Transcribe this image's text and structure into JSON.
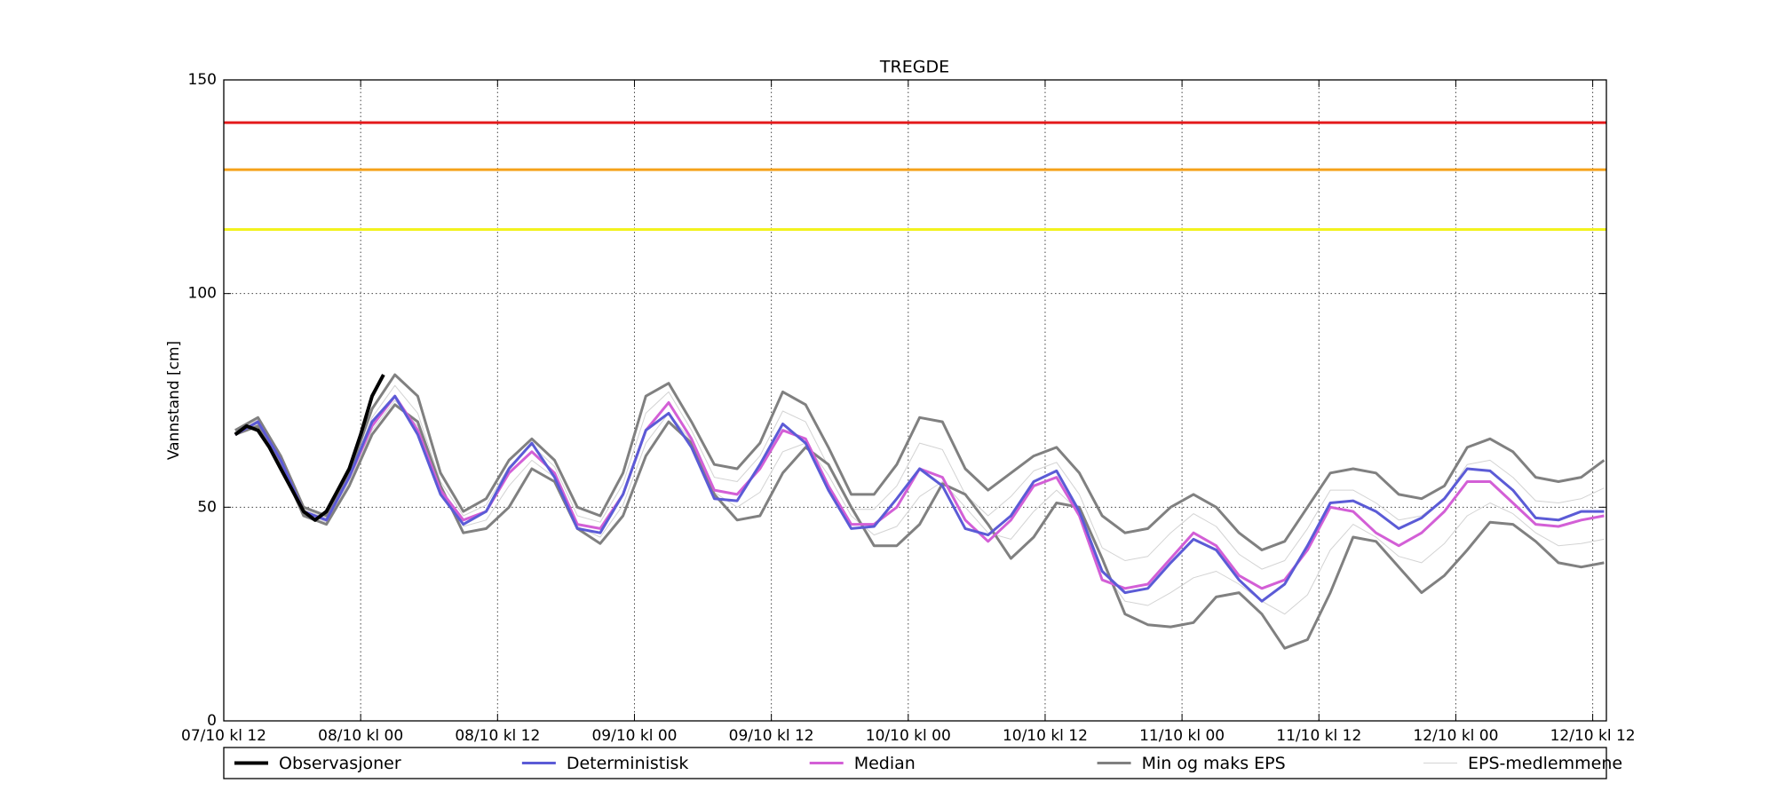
{
  "chart_data": {
    "type": "line",
    "title": "TREGDE",
    "ylabel": "Vannstand [cm]",
    "xlim": [
      0,
      121.2
    ],
    "ylim": [
      0,
      150
    ],
    "xticks": [
      {
        "value": 0,
        "label": "07/10 kl 12"
      },
      {
        "value": 12,
        "label": "08/10 kl 00"
      },
      {
        "value": 24,
        "label": "08/10 kl 12"
      },
      {
        "value": 36,
        "label": "09/10 kl 00"
      },
      {
        "value": 48,
        "label": "09/10 kl 12"
      },
      {
        "value": 60,
        "label": "10/10 kl 00"
      },
      {
        "value": 72,
        "label": "10/10 kl 12"
      },
      {
        "value": 84,
        "label": "11/10 kl 00"
      },
      {
        "value": 96,
        "label": "11/10 kl 12"
      },
      {
        "value": 108,
        "label": "12/10 kl 00"
      },
      {
        "value": 120,
        "label": "12/10 kl 12"
      }
    ],
    "yticks": [
      0,
      50,
      100,
      150
    ],
    "grid": true,
    "legend": "bottom",
    "thresholds": [
      {
        "value": 140,
        "color": "#e41a1c"
      },
      {
        "value": 129,
        "color": "#f5a21b"
      },
      {
        "value": 115,
        "color": "#f2f21e"
      }
    ],
    "x": [
      1,
      3,
      5,
      7,
      9,
      11,
      13,
      15,
      17,
      19,
      21,
      23,
      25,
      27,
      29,
      31,
      33,
      35,
      37,
      39,
      41,
      43,
      45,
      47,
      49,
      51,
      53,
      55,
      57,
      59,
      61,
      63,
      65,
      67,
      69,
      71,
      73,
      75,
      77,
      79,
      81,
      83,
      85,
      87,
      89,
      91,
      93,
      95,
      97,
      99,
      101,
      103,
      105,
      107,
      109,
      111,
      113,
      115,
      117,
      119,
      121
    ],
    "series": [
      {
        "name": "Observasjoner",
        "color": "#000000",
        "linewidth": 4,
        "x": [
          1,
          2,
          3,
          4,
          5,
          6,
          7,
          8,
          9,
          10,
          11,
          12,
          13,
          14
        ],
        "values": [
          67,
          69,
          68,
          64,
          59,
          54,
          49,
          47,
          49,
          54,
          59,
          67,
          76,
          81
        ]
      },
      {
        "name": "Deterministisk",
        "color": "#5b5bd6",
        "linewidth": 3,
        "values": [
          67,
          70,
          61,
          49,
          47,
          57,
          70,
          76,
          67,
          53,
          46,
          49,
          59,
          65,
          57,
          45,
          44,
          53,
          68,
          72,
          64,
          52,
          51.5,
          60,
          69.5,
          65,
          54,
          45,
          45.5,
          52,
          59,
          55,
          45,
          43.5,
          48,
          56,
          58.5,
          49,
          35,
          30,
          31,
          37,
          42.5,
          40,
          33,
          28,
          32,
          41,
          51,
          51.5,
          49,
          45,
          47.5,
          52,
          59,
          58.5,
          54,
          47.5,
          47,
          49,
          49
        ]
      },
      {
        "name": "Median",
        "color": "#d35fd6",
        "linewidth": 3,
        "values": [
          67,
          70,
          61,
          49,
          47,
          57,
          69,
          76,
          68,
          54,
          47,
          49,
          58,
          63,
          58,
          46,
          45,
          53,
          68,
          74.5,
          66,
          54,
          53,
          59,
          68,
          66,
          55,
          46,
          46,
          50,
          59,
          57,
          47,
          42,
          47,
          55,
          57,
          48,
          33,
          31,
          32,
          38,
          44,
          41,
          34,
          31,
          33,
          40,
          50,
          49,
          44,
          41,
          44,
          49,
          56,
          56,
          51,
          46,
          45.5,
          47,
          48
        ]
      },
      {
        "name": "Min og maks EPS",
        "color": "#808080",
        "linewidth": 3,
        "values": [
          68,
          71,
          62,
          50,
          48,
          58,
          73,
          81,
          76,
          58,
          49,
          52,
          61,
          66,
          61,
          50,
          48,
          58,
          76,
          79,
          70,
          60,
          59,
          65,
          77,
          74,
          64,
          53,
          53,
          60,
          71,
          70,
          59,
          54,
          58,
          62,
          64,
          58,
          48,
          44,
          45,
          50,
          53,
          50,
          44,
          40,
          42,
          50,
          58,
          59,
          58,
          53,
          52,
          55,
          64,
          66,
          63,
          57,
          56,
          57,
          61
        ],
        "values_min": [
          67,
          69,
          60,
          48,
          46,
          55,
          67,
          74,
          70,
          55,
          44,
          45,
          50,
          59,
          56,
          45,
          41.5,
          48,
          62,
          70,
          65,
          53,
          47,
          48,
          58,
          64,
          60,
          50,
          41,
          41,
          46,
          55.5,
          53,
          46,
          38,
          43,
          51,
          50,
          38,
          25,
          22.5,
          22,
          23,
          29,
          30,
          25,
          17,
          19,
          30,
          43,
          42,
          36,
          30,
          34,
          40,
          46.5,
          46,
          42,
          37,
          36,
          37
        ]
      },
      {
        "name": "EPS-medlemmene",
        "color": "#d3d3d3",
        "linewidth": 1,
        "members": [
          [
            67.5,
            70.5,
            61.5,
            49.5,
            47.5,
            57.5,
            71,
            78.5,
            72,
            56,
            48,
            50.5,
            59.5,
            64.5,
            59.5,
            48,
            46.5,
            55.5,
            72,
            77,
            68,
            57,
            56,
            62,
            72.5,
            70,
            59.5,
            49.5,
            49.5,
            55,
            65,
            63.5,
            53,
            48,
            52.5,
            58.5,
            60.5,
            53,
            40.5,
            37.5,
            38.5,
            44,
            48.5,
            45.5,
            39,
            35.5,
            37.5,
            45,
            54,
            54,
            51,
            47,
            48,
            52,
            60,
            61,
            57,
            51.5,
            51,
            52,
            54.5
          ],
          [
            67,
            69.5,
            60.5,
            48.5,
            46.5,
            56,
            68,
            75,
            69,
            54.5,
            45.5,
            47,
            55,
            61,
            57,
            45.5,
            43,
            50.5,
            65,
            72,
            65.5,
            53.5,
            50,
            53.5,
            63,
            65,
            57.5,
            48,
            43.5,
            45.5,
            52.5,
            56,
            50,
            44,
            42.5,
            49,
            54,
            49,
            35.5,
            28,
            27,
            30,
            33.5,
            35,
            32,
            28,
            25,
            29.5,
            40,
            46,
            43,
            38.5,
            37,
            41.5,
            48,
            51,
            48.5,
            44,
            41,
            41.5,
            42.5
          ]
        ]
      }
    ]
  }
}
